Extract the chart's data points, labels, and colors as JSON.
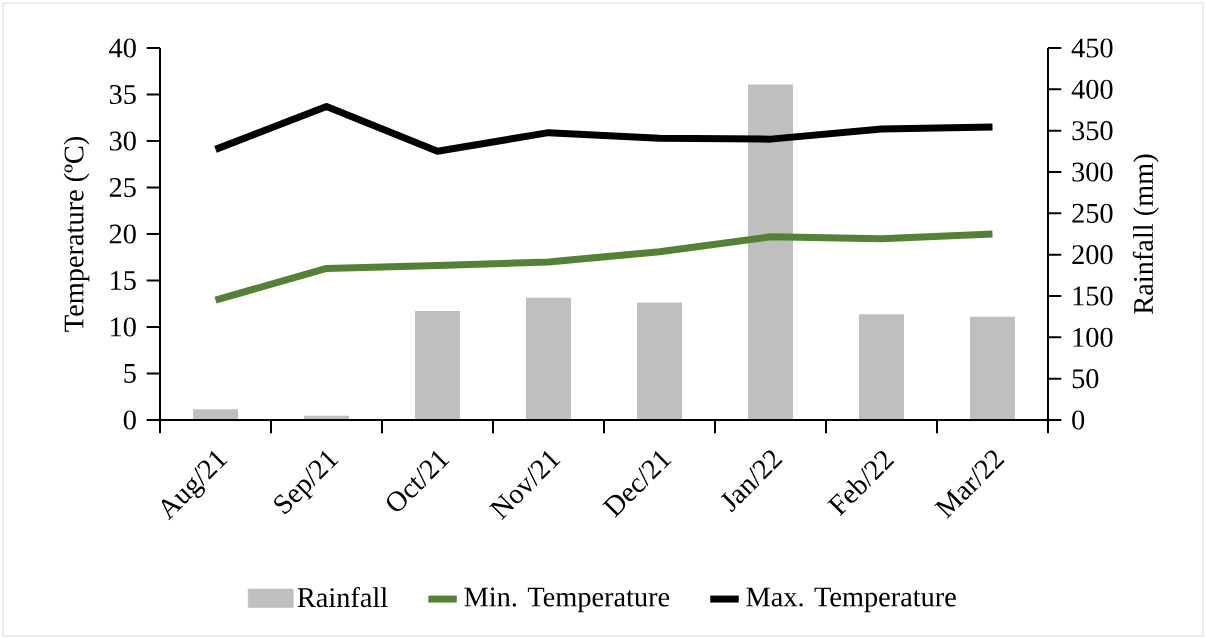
{
  "chart_data": {
    "type": "bar",
    "categories": [
      "Aug/21",
      "Sep/21",
      "Oct/21",
      "Nov/21",
      "Dec/21",
      "Jan/22",
      "Feb/22",
      "Mar/22"
    ],
    "series": [
      {
        "name": "Rainfall",
        "axis": "y2",
        "color": "#bfbfbf",
        "values": [
          13,
          5,
          132,
          148,
          142,
          406,
          128,
          125
        ]
      },
      {
        "name": "Min. Temperature",
        "type": "line",
        "color": "#548235",
        "values": [
          12.9,
          16.3,
          16.6,
          17.0,
          18.1,
          19.7,
          19.5,
          20.0
        ]
      },
      {
        "name": "Max. Temperature",
        "type": "line",
        "color": "#000000",
        "values": [
          29.1,
          33.7,
          28.9,
          30.9,
          30.3,
          30.2,
          31.3,
          31.5
        ]
      }
    ],
    "ylabel": "Temperature (ºC)",
    "y2label": "Rainfall (mm)",
    "ylim": [
      0,
      40
    ],
    "yticks": [
      0,
      5,
      10,
      15,
      20,
      25,
      30,
      35,
      40
    ],
    "y2lim": [
      0,
      450
    ],
    "y2ticks": [
      0,
      50,
      100,
      150,
      200,
      250,
      300,
      350,
      400,
      450
    ],
    "legend": "bottom",
    "grid": false,
    "marker": "none"
  }
}
